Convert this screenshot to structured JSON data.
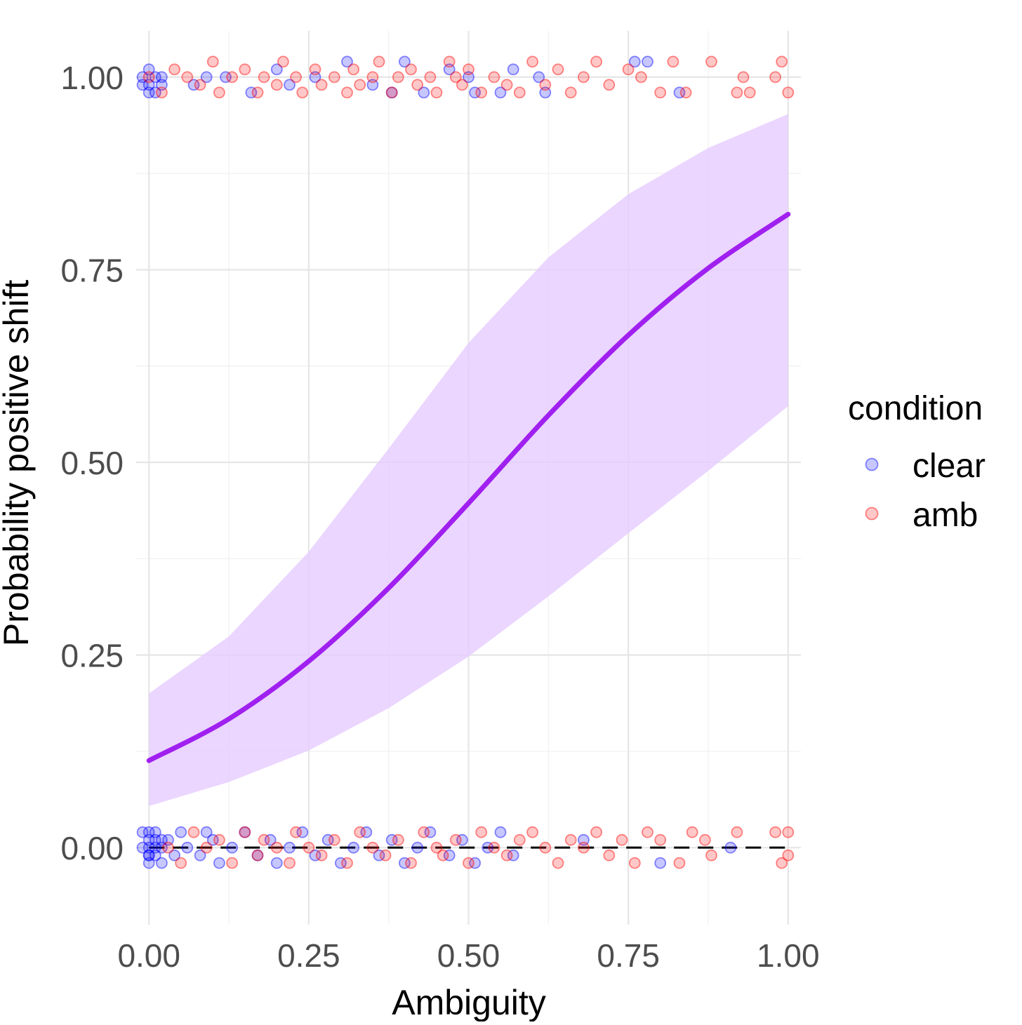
{
  "chart_data": {
    "type": "scatter",
    "title": "",
    "xlabel": "Ambiguity",
    "ylabel": "Probability positive shift",
    "xlim": [
      -0.02,
      1.02
    ],
    "ylim": [
      -0.1,
      1.06
    ],
    "x_ticks": [
      0,
      0.25,
      0.5,
      0.75,
      1
    ],
    "x_tick_labels": [
      "0.00",
      "0.25",
      "0.50",
      "0.75",
      "1.00"
    ],
    "y_ticks": [
      0,
      0.25,
      0.5,
      0.75,
      1
    ],
    "y_tick_labels": [
      "0.00",
      "0.25",
      "0.50",
      "0.75",
      "1.00"
    ],
    "grid": true,
    "reference_line": {
      "y": 0,
      "style": "dashed",
      "color": "#000000"
    },
    "fit": {
      "name": "logistic fit",
      "color": "#a020f0",
      "ribbon_color": "#e6ccff",
      "x": [
        0,
        0.125,
        0.25,
        0.375,
        0.5,
        0.625,
        0.75,
        0.875,
        1
      ],
      "y": [
        0.113,
        0.167,
        0.242,
        0.337,
        0.447,
        0.561,
        0.665,
        0.752,
        0.822
      ],
      "lower": [
        0.054,
        0.085,
        0.126,
        0.181,
        0.248,
        0.326,
        0.408,
        0.489,
        0.573
      ],
      "upper": [
        0.2,
        0.274,
        0.384,
        0.518,
        0.655,
        0.766,
        0.848,
        0.908,
        0.952
      ]
    },
    "legend": {
      "title": "condition",
      "placement": "right",
      "entries": [
        {
          "label": "clear",
          "color": "#0000ff"
        },
        {
          "label": "amb",
          "color": "#ff0000"
        }
      ]
    },
    "series": [
      {
        "name": "clear",
        "color": "#0000ff",
        "points": [
          [
            -0.01,
            0.99
          ],
          [
            0.0,
            1.01
          ],
          [
            0.01,
            0.98
          ],
          [
            0.0,
            0.99
          ],
          [
            0.02,
            1.0
          ],
          [
            0.01,
            1.0
          ],
          [
            -0.01,
            1.0
          ],
          [
            0.0,
            0.98
          ],
          [
            0.02,
            0.99
          ],
          [
            0.07,
            0.99
          ],
          [
            0.09,
            1.0
          ],
          [
            0.12,
            1.0
          ],
          [
            0.16,
            0.98
          ],
          [
            0.2,
            1.01
          ],
          [
            0.22,
            0.99
          ],
          [
            0.26,
            1.0
          ],
          [
            0.31,
            1.02
          ],
          [
            0.35,
            0.99
          ],
          [
            0.38,
            0.98
          ],
          [
            0.4,
            1.02
          ],
          [
            0.43,
            0.98
          ],
          [
            0.47,
            1.01
          ],
          [
            0.5,
            1.0
          ],
          [
            0.51,
            0.98
          ],
          [
            0.55,
            0.98
          ],
          [
            0.57,
            1.01
          ],
          [
            0.61,
            1.0
          ],
          [
            0.62,
            0.98
          ],
          [
            0.76,
            1.02
          ],
          [
            0.78,
            1.02
          ],
          [
            0.83,
            0.98
          ],
          [
            0.0,
            0.0
          ],
          [
            0.0,
            0.01
          ],
          [
            0.0,
            -0.01
          ],
          [
            0.01,
            0.0
          ],
          [
            0.01,
            0.02
          ],
          [
            -0.01,
            0.0
          ],
          [
            0.0,
            -0.02
          ],
          [
            0.02,
            0.01
          ],
          [
            0.01,
            -0.01
          ],
          [
            -0.01,
            0.02
          ],
          [
            0.0,
            0.02
          ],
          [
            0.02,
            -0.02
          ],
          [
            0.01,
            0.01
          ],
          [
            0.0,
            -0.01
          ],
          [
            0.02,
            0.0
          ],
          [
            0.03,
            0.01
          ],
          [
            0.04,
            -0.01
          ],
          [
            0.05,
            0.02
          ],
          [
            0.06,
            0.0
          ],
          [
            0.08,
            -0.01
          ],
          [
            0.09,
            0.02
          ],
          [
            0.1,
            0.01
          ],
          [
            0.11,
            -0.02
          ],
          [
            0.13,
            0.0
          ],
          [
            0.15,
            0.02
          ],
          [
            0.17,
            -0.01
          ],
          [
            0.19,
            0.01
          ],
          [
            0.2,
            -0.02
          ],
          [
            0.22,
            0.0
          ],
          [
            0.24,
            0.02
          ],
          [
            0.26,
            -0.01
          ],
          [
            0.28,
            0.01
          ],
          [
            0.3,
            -0.02
          ],
          [
            0.32,
            0.0
          ],
          [
            0.34,
            0.02
          ],
          [
            0.36,
            -0.01
          ],
          [
            0.38,
            0.01
          ],
          [
            0.4,
            -0.02
          ],
          [
            0.42,
            0.0
          ],
          [
            0.44,
            0.02
          ],
          [
            0.47,
            -0.01
          ],
          [
            0.49,
            0.01
          ],
          [
            0.51,
            -0.02
          ],
          [
            0.53,
            0.0
          ],
          [
            0.55,
            0.02
          ],
          [
            0.57,
            -0.01
          ],
          [
            0.68,
            0.01
          ],
          [
            0.8,
            -0.02
          ],
          [
            0.91,
            0.0
          ]
        ]
      },
      {
        "name": "amb",
        "color": "#ff0000",
        "points": [
          [
            0.0,
            1.0
          ],
          [
            0.02,
            0.98
          ],
          [
            0.04,
            1.01
          ],
          [
            0.06,
            1.0
          ],
          [
            0.08,
            0.99
          ],
          [
            0.1,
            1.02
          ],
          [
            0.11,
            0.98
          ],
          [
            0.13,
            1.0
          ],
          [
            0.15,
            1.01
          ],
          [
            0.17,
            0.98
          ],
          [
            0.18,
            1.0
          ],
          [
            0.2,
            0.99
          ],
          [
            0.21,
            1.02
          ],
          [
            0.23,
            1.0
          ],
          [
            0.24,
            0.98
          ],
          [
            0.26,
            1.01
          ],
          [
            0.27,
            0.99
          ],
          [
            0.29,
            1.0
          ],
          [
            0.31,
            0.98
          ],
          [
            0.32,
            1.01
          ],
          [
            0.33,
            0.99
          ],
          [
            0.35,
            1.0
          ],
          [
            0.36,
            1.02
          ],
          [
            0.38,
            0.98
          ],
          [
            0.39,
            1.0
          ],
          [
            0.41,
            1.01
          ],
          [
            0.42,
            0.99
          ],
          [
            0.44,
            1.0
          ],
          [
            0.45,
            0.98
          ],
          [
            0.47,
            1.02
          ],
          [
            0.48,
            1.0
          ],
          [
            0.49,
            0.99
          ],
          [
            0.5,
            1.01
          ],
          [
            0.52,
            0.98
          ],
          [
            0.54,
            1.0
          ],
          [
            0.56,
            0.99
          ],
          [
            0.58,
            0.98
          ],
          [
            0.6,
            1.02
          ],
          [
            0.62,
            0.99
          ],
          [
            0.64,
            1.01
          ],
          [
            0.66,
            0.98
          ],
          [
            0.68,
            1.0
          ],
          [
            0.7,
            1.02
          ],
          [
            0.72,
            0.99
          ],
          [
            0.75,
            1.01
          ],
          [
            0.77,
            1.0
          ],
          [
            0.8,
            0.98
          ],
          [
            0.82,
            1.02
          ],
          [
            0.84,
            0.98
          ],
          [
            0.88,
            1.02
          ],
          [
            0.92,
            0.98
          ],
          [
            0.93,
            1.0
          ],
          [
            0.94,
            0.98
          ],
          [
            0.98,
            1.0
          ],
          [
            0.99,
            1.02
          ],
          [
            1.0,
            0.98
          ],
          [
            0.03,
            0.0
          ],
          [
            0.05,
            -0.02
          ],
          [
            0.07,
            0.02
          ],
          [
            0.09,
            0.0
          ],
          [
            0.11,
            0.01
          ],
          [
            0.13,
            -0.02
          ],
          [
            0.15,
            0.02
          ],
          [
            0.17,
            -0.01
          ],
          [
            0.18,
            0.01
          ],
          [
            0.2,
            0.0
          ],
          [
            0.22,
            -0.02
          ],
          [
            0.23,
            0.02
          ],
          [
            0.25,
            0.0
          ],
          [
            0.27,
            -0.01
          ],
          [
            0.29,
            0.01
          ],
          [
            0.31,
            -0.02
          ],
          [
            0.33,
            0.02
          ],
          [
            0.35,
            0.0
          ],
          [
            0.37,
            -0.01
          ],
          [
            0.39,
            0.01
          ],
          [
            0.41,
            -0.02
          ],
          [
            0.43,
            0.02
          ],
          [
            0.45,
            0.0
          ],
          [
            0.46,
            -0.01
          ],
          [
            0.48,
            0.01
          ],
          [
            0.5,
            -0.02
          ],
          [
            0.52,
            0.02
          ],
          [
            0.54,
            0.0
          ],
          [
            0.56,
            -0.01
          ],
          [
            0.58,
            0.01
          ],
          [
            0.6,
            0.02
          ],
          [
            0.62,
            0.0
          ],
          [
            0.64,
            -0.02
          ],
          [
            0.66,
            0.01
          ],
          [
            0.68,
            0.0
          ],
          [
            0.7,
            0.02
          ],
          [
            0.72,
            -0.01
          ],
          [
            0.74,
            0.01
          ],
          [
            0.76,
            -0.02
          ],
          [
            0.78,
            0.02
          ],
          [
            0.8,
            0.01
          ],
          [
            0.83,
            -0.02
          ],
          [
            0.85,
            0.02
          ],
          [
            0.87,
            0.01
          ],
          [
            0.88,
            -0.01
          ],
          [
            0.92,
            0.02
          ],
          [
            0.98,
            0.02
          ],
          [
            0.99,
            -0.02
          ],
          [
            1.0,
            0.02
          ],
          [
            1.0,
            -0.01
          ]
        ]
      }
    ]
  }
}
